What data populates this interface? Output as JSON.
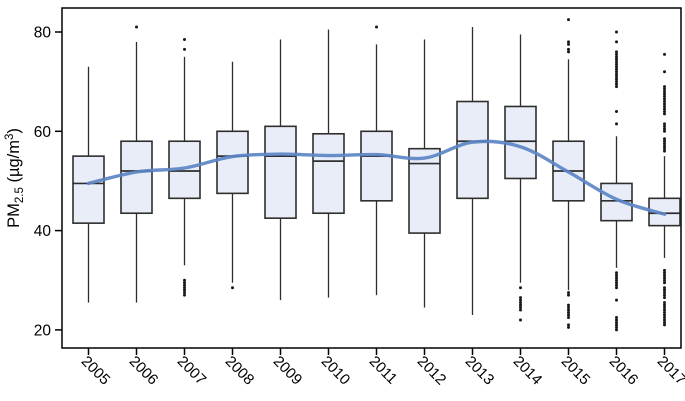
{
  "chart_data": {
    "type": "boxplot",
    "title": "",
    "xlabel": "",
    "ylabel": "PM2.5 (µg/m³)",
    "ylabel_parts": {
      "prefix": "PM",
      "sub": "2.5",
      "mid": " (µg/m",
      "sup": "3",
      "suffix": ")"
    },
    "categories": [
      "2005",
      "2006",
      "2007",
      "2008",
      "2009",
      "2010",
      "2011",
      "2012",
      "2013",
      "2014",
      "2015",
      "2016",
      "2017"
    ],
    "y_ticks": [
      20,
      40,
      60,
      80
    ],
    "ylim": [
      16.4,
      84.8
    ],
    "grid": false,
    "legend": "none",
    "boxes": [
      {
        "year": "2005",
        "whisker_low": 25.5,
        "q1": 41.5,
        "median": 49.5,
        "q3": 55.0,
        "whisker_high": 73.0,
        "outliers_high": [],
        "outliers_low": []
      },
      {
        "year": "2006",
        "whisker_low": 25.5,
        "q1": 43.5,
        "median": 52.0,
        "q3": 58.0,
        "whisker_high": 78.0,
        "outliers_high": [
          81.0
        ],
        "outliers_low": []
      },
      {
        "year": "2007",
        "whisker_low": 33.0,
        "q1": 46.5,
        "median": 52.0,
        "q3": 58.0,
        "whisker_high": 75.0,
        "outliers_high": [
          78.5,
          76.5
        ],
        "outliers_low": [
          30.0,
          29.5,
          29.0,
          28.5,
          28.0,
          27.5,
          27.0
        ]
      },
      {
        "year": "2008",
        "whisker_low": 29.5,
        "q1": 47.5,
        "median": 55.0,
        "q3": 60.0,
        "whisker_high": 74.0,
        "outliers_high": [],
        "outliers_low": [
          28.5
        ]
      },
      {
        "year": "2009",
        "whisker_low": 26.0,
        "q1": 42.5,
        "median": 55.0,
        "q3": 61.0,
        "whisker_high": 78.5,
        "outliers_high": [],
        "outliers_low": []
      },
      {
        "year": "2010",
        "whisker_low": 26.5,
        "q1": 43.5,
        "median": 54.0,
        "q3": 59.5,
        "whisker_high": 80.5,
        "outliers_high": [],
        "outliers_low": []
      },
      {
        "year": "2011",
        "whisker_low": 27.0,
        "q1": 46.0,
        "median": 55.0,
        "q3": 60.0,
        "whisker_high": 77.5,
        "outliers_high": [
          81.0
        ],
        "outliers_low": []
      },
      {
        "year": "2012",
        "whisker_low": 24.5,
        "q1": 39.5,
        "median": 53.5,
        "q3": 56.5,
        "whisker_high": 78.5,
        "outliers_high": [],
        "outliers_low": []
      },
      {
        "year": "2013",
        "whisker_low": 23.0,
        "q1": 46.5,
        "median": 58.0,
        "q3": 66.0,
        "whisker_high": 81.0,
        "outliers_high": [],
        "outliers_low": []
      },
      {
        "year": "2014",
        "whisker_low": 29.5,
        "q1": 50.5,
        "median": 58.0,
        "q3": 65.0,
        "whisker_high": 79.5,
        "outliers_high": [],
        "outliers_low": [
          28.5,
          26.5,
          26.0,
          25.5,
          25.0,
          24.5,
          24.0,
          22.0
        ]
      },
      {
        "year": "2015",
        "whisker_low": 28.0,
        "q1": 46.0,
        "median": 52.0,
        "q3": 58.0,
        "whisker_high": 74.5,
        "outliers_high": [
          82.5,
          78.0,
          77.5,
          76.5,
          76.0
        ],
        "outliers_low": [
          27.5,
          27.0,
          25.0,
          24.5,
          24.0,
          23.5,
          23.0,
          22.5,
          21.0,
          20.5
        ]
      },
      {
        "year": "2016",
        "whisker_low": 32.5,
        "q1": 42.0,
        "median": 46.0,
        "q3": 49.5,
        "whisker_high": 59.0,
        "outliers_high": [
          80.0,
          78.0,
          76.0,
          75.5,
          75.0,
          74.5,
          74.0,
          73.5,
          73.0,
          72.5,
          72.0,
          71.5,
          71.0,
          70.5,
          70.0,
          69.5,
          69.0,
          64.0,
          61.5
        ],
        "outliers_low": [
          31.5,
          31.0,
          30.5,
          30.0,
          29.5,
          29.0,
          28.5,
          26.0,
          22.5,
          22.0,
          21.5,
          21.0,
          20.5,
          20.0
        ]
      },
      {
        "year": "2017",
        "whisker_low": 34.5,
        "q1": 41.0,
        "median": 43.5,
        "q3": 46.5,
        "whisker_high": 55.0,
        "outliers_high": [
          75.5,
          72.0,
          69.0,
          68.5,
          68.0,
          67.5,
          67.0,
          66.5,
          66.0,
          65.5,
          65.0,
          64.5,
          64.0,
          63.5,
          61.5,
          61.0,
          60.5,
          60.0,
          58.5,
          58.0,
          57.5,
          57.0,
          56.5,
          56.0
        ],
        "outliers_low": [
          32.0,
          31.5,
          31.0,
          30.5,
          30.0,
          29.5,
          28.5,
          28.0,
          27.5,
          27.0,
          26.5,
          25.5,
          25.0,
          24.5,
          24.0,
          23.5,
          23.0,
          22.5,
          22.0,
          21.5,
          21.0
        ]
      }
    ],
    "trend_line": {
      "name": "loess-smoothed-trend",
      "x": [
        "2005",
        "2006",
        "2007",
        "2008",
        "2009",
        "2010",
        "2011",
        "2012",
        "2013",
        "2014",
        "2015",
        "2016",
        "2017"
      ],
      "values": [
        49.5,
        51.8,
        52.6,
        54.9,
        55.4,
        55.1,
        55.3,
        54.6,
        57.8,
        56.9,
        51.8,
        46.3,
        43.3
      ]
    }
  },
  "style": {
    "box_fill": "#e9edf8",
    "box_stroke": "#2e2e2e",
    "median_color": "#2e2e2e",
    "whisker_color": "#2e2e2e",
    "outlier_color": "#1a1a1a",
    "trend_color": "#5b86c4",
    "frame_color": "#000000",
    "text_color": "#000000",
    "background": "#ffffff"
  }
}
